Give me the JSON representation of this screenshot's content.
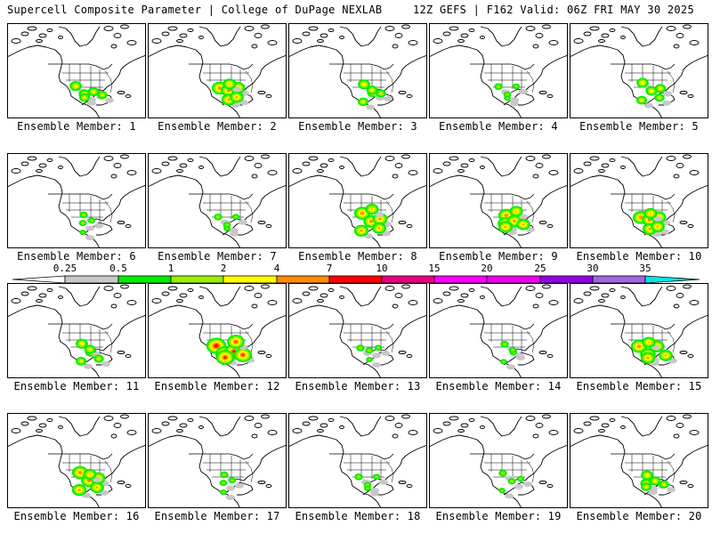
{
  "header": {
    "title": "Supercell Composite Parameter | College of DuPage NEXLAB",
    "run_info": "12Z GEFS | F162 Valid: 06Z FRI MAY 30 2025"
  },
  "panel_label_prefix": "Ensemble Member: ",
  "members": [
    {
      "number": "1",
      "intensity": 2
    },
    {
      "number": "2",
      "intensity": 3
    },
    {
      "number": "3",
      "intensity": 2
    },
    {
      "number": "4",
      "intensity": 1
    },
    {
      "number": "5",
      "intensity": 2
    },
    {
      "number": "6",
      "intensity": 1
    },
    {
      "number": "7",
      "intensity": 1
    },
    {
      "number": "8",
      "intensity": 3
    },
    {
      "number": "9",
      "intensity": 3
    },
    {
      "number": "10",
      "intensity": 3
    },
    {
      "number": "11",
      "intensity": 2
    },
    {
      "number": "12",
      "intensity": 4
    },
    {
      "number": "13",
      "intensity": 1
    },
    {
      "number": "14",
      "intensity": 1
    },
    {
      "number": "15",
      "intensity": 3
    },
    {
      "number": "16",
      "intensity": 3
    },
    {
      "number": "17",
      "intensity": 1
    },
    {
      "number": "18",
      "intensity": 1
    },
    {
      "number": "19",
      "intensity": 1
    },
    {
      "number": "20",
      "intensity": 2
    }
  ],
  "colorbar": {
    "ticks": [
      "0.25",
      "0.5",
      "1",
      "2",
      "4",
      "7",
      "10",
      "15",
      "20",
      "25",
      "30",
      "35"
    ],
    "colors": [
      "#ffffff",
      "#c8c8c8",
      "#00ee00",
      "#9aee00",
      "#ffff00",
      "#ff8c00",
      "#ff0000",
      "#e6007e",
      "#ff00ff",
      "#ee00ee",
      "#9600e6",
      "#a066dd",
      "#00e6e6"
    ]
  }
}
